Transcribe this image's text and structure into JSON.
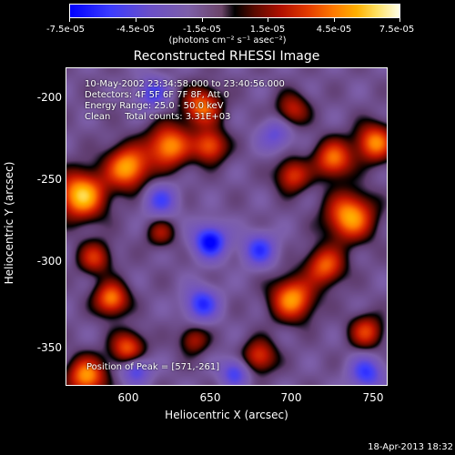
{
  "colorbar": {
    "ticks": [
      "-7.5e-05",
      "-4.5e-05",
      "-1.5e-05",
      "1.5e-05",
      "4.5e-05",
      "7.5e-05"
    ],
    "units": "(photons cm⁻² s⁻¹ asec⁻²)",
    "range": [
      -7.5e-05,
      7.5e-05
    ]
  },
  "chart_data": {
    "type": "heatmap",
    "title": "Reconstructed RHESSI Image",
    "xlabel": "Heliocentric X (arcsec)",
    "ylabel": "Heliocentric Y (arcsec)",
    "xlim": [
      563,
      757
    ],
    "ylim": [
      -377,
      -185
    ],
    "xticks": [
      "600",
      "650",
      "700",
      "750"
    ],
    "xtick_values": [
      600,
      650,
      700,
      750
    ],
    "yticks": [
      "-200",
      "-250",
      "-300",
      "-350"
    ],
    "ytick_values": [
      -200,
      -250,
      -300,
      -350
    ],
    "peak": {
      "x": 571,
      "y": -261
    },
    "blobs": [
      {
        "x": 572,
        "y": -262,
        "v": 1.0,
        "s": 10
      },
      {
        "x": 600,
        "y": -245,
        "v": 0.9,
        "s": 9
      },
      {
        "x": 625,
        "y": -232,
        "v": 0.85,
        "s": 9
      },
      {
        "x": 645,
        "y": -208,
        "v": 0.75,
        "s": 8
      },
      {
        "x": 650,
        "y": -232,
        "v": 0.7,
        "s": 7
      },
      {
        "x": 700,
        "y": -250,
        "v": 0.6,
        "s": 7
      },
      {
        "x": 725,
        "y": -240,
        "v": 0.75,
        "s": 8
      },
      {
        "x": 735,
        "y": -275,
        "v": 0.9,
        "s": 10
      },
      {
        "x": 750,
        "y": -230,
        "v": 0.8,
        "s": 8
      },
      {
        "x": 700,
        "y": -325,
        "v": 0.85,
        "s": 9
      },
      {
        "x": 720,
        "y": -305,
        "v": 0.7,
        "s": 8
      },
      {
        "x": 745,
        "y": -345,
        "v": 0.6,
        "s": 7
      },
      {
        "x": 580,
        "y": -300,
        "v": 0.55,
        "s": 7
      },
      {
        "x": 590,
        "y": -325,
        "v": 0.8,
        "s": 7
      },
      {
        "x": 600,
        "y": -355,
        "v": 0.7,
        "s": 7
      },
      {
        "x": 575,
        "y": -372,
        "v": 0.85,
        "s": 8
      },
      {
        "x": 680,
        "y": -360,
        "v": 0.6,
        "s": 7
      },
      {
        "x": 640,
        "y": -350,
        "v": 0.45,
        "s": 6
      },
      {
        "x": 620,
        "y": -285,
        "v": 0.4,
        "s": 6
      },
      {
        "x": 700,
        "y": -210,
        "v": 0.5,
        "s": 7
      },
      {
        "x": 650,
        "y": -290,
        "v": -0.85,
        "s": 7
      },
      {
        "x": 620,
        "y": -265,
        "v": -0.5,
        "s": 7
      },
      {
        "x": 645,
        "y": -328,
        "v": -0.65,
        "s": 7
      },
      {
        "x": 605,
        "y": -368,
        "v": -0.55,
        "s": 6
      },
      {
        "x": 680,
        "y": -295,
        "v": -0.6,
        "s": 7
      },
      {
        "x": 665,
        "y": -370,
        "v": -0.55,
        "s": 6
      },
      {
        "x": 615,
        "y": -200,
        "v": -0.5,
        "s": 7
      },
      {
        "x": 690,
        "y": -225,
        "v": -0.4,
        "s": 7
      },
      {
        "x": 745,
        "y": -370,
        "v": -0.6,
        "s": 7
      }
    ]
  },
  "annotations": {
    "line1": "10-May-2002 23:34:58.000 to 23:40:56.000",
    "line2": "Detectors: 4F 5F 6F 7F 8F, Att 0",
    "line3": "Energy Range: 25.0 - 50.0 keV",
    "line4": "Clean     Total counts: 3.31E+03",
    "peak_text": "Position of Peak = [571,-261]"
  },
  "timestamp": "18-Apr-2013 18:32"
}
